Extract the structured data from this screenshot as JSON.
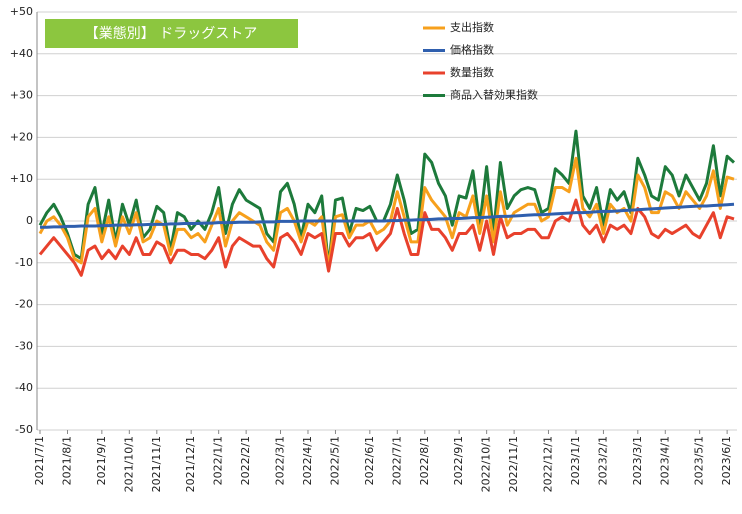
{
  "chart_data": {
    "type": "line",
    "title": "【業態別】 ドラッグストア",
    "categories": [
      "2021/7/1",
      null,
      null,
      null,
      "2021/8/1",
      null,
      null,
      null,
      null,
      "2021/9/1",
      null,
      null,
      null,
      "2021/10/1",
      null,
      null,
      null,
      "2021/11/1",
      null,
      null,
      null,
      null,
      "2021/12/1",
      null,
      null,
      null,
      "2022/1/1",
      null,
      null,
      null,
      "2022/2/1",
      null,
      null,
      null,
      null,
      "2022/3/1",
      null,
      null,
      null,
      "2022/4/1",
      null,
      null,
      null,
      "2022/5/1",
      null,
      null,
      null,
      null,
      "2022/6/1",
      null,
      null,
      null,
      "2022/7/1",
      null,
      null,
      null,
      "2022/8/1",
      null,
      null,
      null,
      null,
      "2022/9/1",
      null,
      null,
      null,
      "2022/10/1",
      null,
      null,
      null,
      "2022/11/1",
      null,
      null,
      null,
      null,
      "2022/12/1",
      null,
      null,
      null,
      "2023/1/1",
      null,
      null,
      null,
      "2023/2/1",
      null,
      null,
      null,
      null,
      "2023/3/1",
      null,
      null,
      null,
      "2023/4/1",
      null,
      null,
      null,
      null,
      "2023/5/1",
      null,
      null,
      null,
      "2023/6/1",
      null
    ],
    "series": [
      {
        "name": "支出指数",
        "color": "#f7a01c",
        "values": [
          -3,
          0,
          1,
          -1,
          -4,
          -9,
          -10,
          1,
          3,
          -5,
          1,
          -6,
          1,
          -3,
          2,
          -5,
          -4,
          0,
          -1,
          -8,
          -2,
          -2,
          -4,
          -3,
          -5,
          -1,
          3,
          -6,
          0,
          2,
          1,
          0,
          -1,
          -5,
          -7,
          2,
          3,
          0,
          -5,
          0,
          -1,
          1,
          -11,
          1,
          1.5,
          -4,
          -1,
          -1,
          0,
          -3,
          -2,
          0,
          7,
          1,
          -5,
          -5,
          8,
          5,
          3,
          1,
          -4,
          2,
          1,
          6,
          -3,
          6,
          -5,
          7,
          -1,
          2,
          3,
          4,
          4,
          0,
          1,
          8,
          8,
          7,
          15,
          3,
          1,
          4,
          -3,
          4,
          2,
          3,
          0,
          11,
          8,
          2,
          2,
          7,
          6,
          3,
          7,
          5,
          3,
          6,
          12,
          3,
          10.5,
          10
        ]
      },
      {
        "name": "価格指数",
        "color": "#2f5fae",
        "values": [
          -1.5,
          -1.5,
          -1.4,
          -1.4,
          -1.3,
          -1.3,
          -1.2,
          -1.2,
          -1.2,
          -1.1,
          -1.1,
          -1.0,
          -1.0,
          -1.0,
          -0.9,
          -0.9,
          -0.8,
          -0.8,
          -0.8,
          -0.7,
          -0.7,
          -0.6,
          -0.6,
          -0.6,
          -0.5,
          -0.5,
          -0.4,
          -0.4,
          -0.4,
          -0.3,
          -0.3,
          -0.3,
          -0.2,
          -0.2,
          -0.2,
          -0.1,
          -0.1,
          -0.1,
          0,
          0,
          0,
          0,
          0,
          0,
          0,
          0,
          0,
          0,
          0,
          0,
          0,
          0.1,
          0.1,
          0.2,
          0.2,
          0.3,
          0.3,
          0.4,
          0.5,
          0.5,
          0.6,
          0.6,
          0.7,
          0.8,
          0.8,
          0.9,
          1.0,
          1.1,
          1.1,
          1.2,
          1.3,
          1.4,
          1.5,
          1.5,
          1.6,
          1.7,
          1.8,
          1.9,
          2.0,
          2.0,
          2.1,
          2.2,
          2.3,
          2.3,
          2.4,
          2.5,
          2.6,
          2.7,
          2.8,
          2.9,
          3.0,
          3.1,
          3.2,
          3.3,
          3.4,
          3.5,
          3.6,
          3.6,
          3.7,
          3.8,
          3.9,
          4.0
        ]
      },
      {
        "name": "数量指数",
        "color": "#e8412c",
        "values": [
          -8,
          -6,
          -4,
          -6,
          -8,
          -10,
          -13,
          -7,
          -6,
          -9,
          -7,
          -9,
          -6,
          -8,
          -4,
          -8,
          -8,
          -5,
          -6,
          -10,
          -7,
          -7,
          -8,
          -8,
          -9,
          -7,
          -4,
          -11,
          -6,
          -4,
          -5,
          -6,
          -6,
          -9,
          -11,
          -4,
          -3,
          -5,
          -8,
          -3,
          -4,
          -3,
          -12,
          -3,
          -3,
          -6,
          -4,
          -4,
          -3,
          -7,
          -5,
          -3,
          3,
          -3,
          -8,
          -8,
          2,
          -2,
          -2,
          -4,
          -7,
          -3,
          -3,
          -1,
          -7,
          0,
          -8,
          1,
          -4,
          -3,
          -3,
          -2,
          -2,
          -4,
          -4,
          0,
          1,
          0,
          5,
          -1,
          -3,
          -1,
          -5,
          -1,
          -2,
          -1,
          -3,
          3,
          1,
          -3,
          -4,
          -2,
          -3,
          -2,
          -1,
          -3,
          -4,
          -1,
          2,
          -4,
          1,
          0.5
        ]
      },
      {
        "name": "商品入替効果指数",
        "color": "#1d7a3b",
        "values": [
          -1,
          2,
          4,
          1,
          -3,
          -8,
          -9,
          4,
          8,
          -3,
          5,
          -5,
          4,
          -1,
          5,
          -4,
          -2,
          3.5,
          2,
          -7,
          2,
          1,
          -2,
          0,
          -2,
          2,
          8,
          -3,
          4,
          7.5,
          5,
          4,
          3,
          -3,
          -5,
          7,
          9,
          4,
          -4,
          4,
          2,
          6,
          -11,
          5,
          5.5,
          -3,
          3,
          2.5,
          3.5,
          0,
          0,
          4,
          11,
          5,
          -3,
          -2,
          16,
          14,
          9,
          6,
          -1,
          6,
          5.5,
          12,
          -1,
          13,
          -3,
          14,
          3,
          6,
          7.5,
          8,
          7.5,
          2,
          3,
          12.5,
          11,
          9,
          21.5,
          6,
          3,
          8,
          -1,
          7.5,
          5,
          7,
          2,
          15,
          11,
          6,
          5,
          13,
          11,
          6,
          11,
          8,
          5,
          9,
          18,
          6,
          15.5,
          14
        ]
      }
    ],
    "ylim": [
      -50,
      50
    ],
    "yticks": [
      {
        "value": 50,
        "label": "+50"
      },
      {
        "value": 40,
        "label": "+40"
      },
      {
        "value": 30,
        "label": "+30"
      },
      {
        "value": 20,
        "label": "+20"
      },
      {
        "value": 10,
        "label": "+10"
      },
      0,
      -10,
      -20,
      -30,
      -40,
      -50
    ],
    "grid": true
  }
}
